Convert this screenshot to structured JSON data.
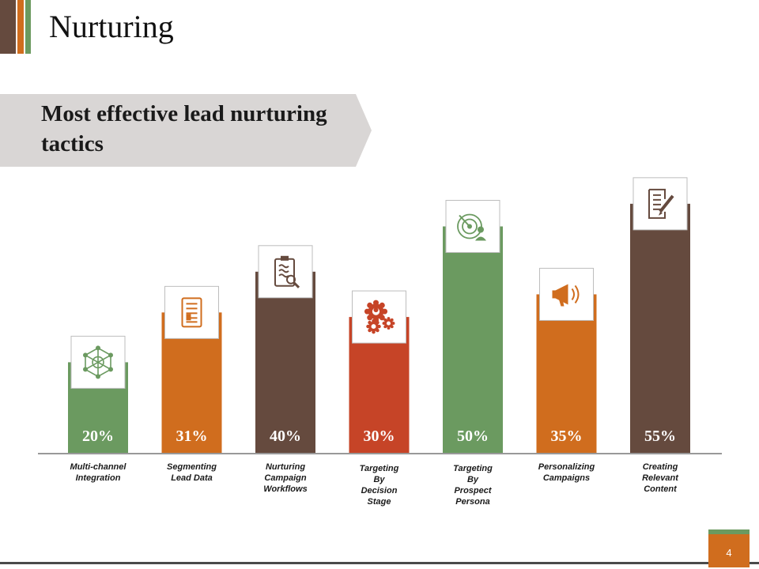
{
  "page": {
    "title": "Nurturing",
    "subtitle": "Most effective lead nurturing tactics",
    "page_number": "4"
  },
  "colors": {
    "brown": "#654a3e",
    "orange": "#d06d1e",
    "green": "#6b9a60",
    "red": "#c64427",
    "banner": "#d9d6d5"
  },
  "chart_data": {
    "type": "bar",
    "title": "Most effective lead nurturing tactics",
    "categories": [
      "Multi-channel Integration",
      "Segmenting Lead Data",
      "Nurturing Campaign Workflows",
      "Targeting By Decision Stage",
      "Targeting By Prospect Persona",
      "Personalizing Campaigns",
      "Creating Relevant Content"
    ],
    "category_lines": [
      [
        "Multi-channel",
        "Integration"
      ],
      [
        "Segmenting",
        "Lead Data"
      ],
      [
        "Nurturing",
        "Campaign",
        "Workflows"
      ],
      [
        "Targeting",
        "By",
        "Decision",
        "Stage"
      ],
      [
        "Targeting",
        "By",
        "Prospect",
        "Persona"
      ],
      [
        "Personalizing",
        "Campaigns"
      ],
      [
        "Creating",
        "Relevant",
        "Content"
      ]
    ],
    "values": [
      20,
      31,
      40,
      30,
      50,
      35,
      55
    ],
    "value_labels": [
      "20%",
      "31%",
      "40%",
      "30%",
      "50%",
      "35%",
      "55%"
    ],
    "bar_colors": [
      "#6b9a60",
      "#d06d1e",
      "#654a3e",
      "#c64427",
      "#6b9a60",
      "#d06d1e",
      "#654a3e"
    ],
    "icons": [
      "network-icon",
      "document-icon",
      "clipboard-icon",
      "gears-person-icon",
      "target-person-icon",
      "megaphone-icon",
      "edit-document-icon"
    ],
    "xlabel": "",
    "ylabel": "",
    "ylim": [
      0,
      60
    ],
    "grid": false,
    "legend": "none"
  }
}
